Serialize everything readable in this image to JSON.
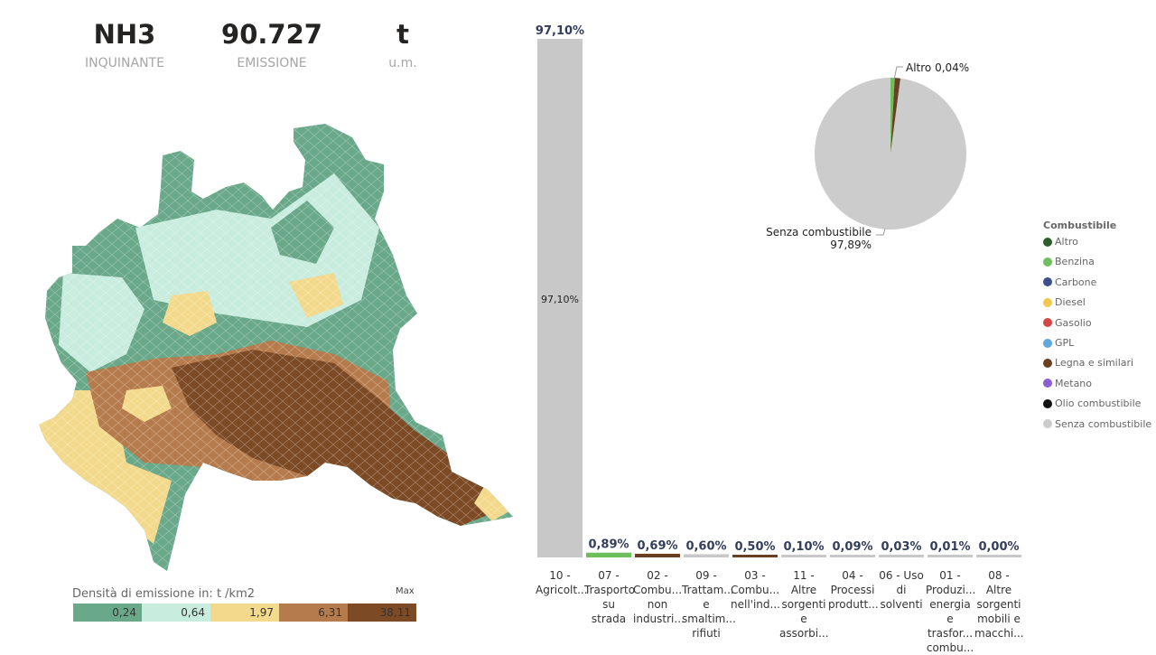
{
  "kpis": [
    {
      "value": "NH3",
      "label": "INQUINANTE"
    },
    {
      "value": "90.727",
      "label": "EMISSIONE"
    },
    {
      "value": "t",
      "label": "u.m."
    }
  ],
  "map_legend": {
    "title": "Densità di emissione in:  t /km2",
    "max_label": "Max",
    "classes": [
      {
        "value": "0,24",
        "color": "#6aa88a"
      },
      {
        "value": "0,64",
        "color": "#c8ecdd"
      },
      {
        "value": "1,97",
        "color": "#f3d98b"
      },
      {
        "value": "6,31",
        "color": "#b57b4c"
      },
      {
        "value": "38,11",
        "color": "#7d4a26"
      }
    ]
  },
  "chart_data": [
    {
      "type": "bar",
      "categories": [
        "10 - Agricolt...",
        "07 - Trasporto su strada",
        "02 - Combu... non industri...",
        "09 - Trattam... e smaltim... rifiuti",
        "03 - Combu... nell'ind...",
        "11 - Altre sorgenti e assorbi...",
        "04 - Processi produtt...",
        "06 - Uso di solventi",
        "01 - Produzi... energia e trasfor... combu...",
        "08 - Altre sorgenti mobili e macchi..."
      ],
      "values": [
        97.1,
        0.89,
        0.69,
        0.6,
        0.5,
        0.1,
        0.09,
        0.03,
        0.01,
        0.0
      ],
      "value_labels": [
        "97,10%",
        "0,89%",
        "0,69%",
        "0,60%",
        "0,50%",
        "0,10%",
        "0,09%",
        "0,03%",
        "0,01%",
        "0,00%"
      ],
      "inner_label": "97,10%",
      "bar_colors": [
        "#c8c8c8",
        "#6cbf5c",
        "#6b3f21",
        "#c8c8c8",
        "#6b3f21",
        "#c8c8c8",
        "#c8c8c8",
        "#c8c8c8",
        "#c8c8c8",
        "#c8c8c8"
      ]
    },
    {
      "type": "pie",
      "slices": [
        {
          "name": "Senza combustibile",
          "value": 97.89,
          "color": "#cccccc"
        },
        {
          "name": "Benzina",
          "value": 0.9,
          "color": "#6cbf5c"
        },
        {
          "name": "Legna e similari",
          "value": 1.17,
          "color": "#6b3f21"
        },
        {
          "name": "Altro",
          "value": 0.04,
          "color": "#2e5e2e"
        }
      ],
      "label_altro": "Altro 0,04%",
      "label_senza": "Senza combustibile",
      "label_senza_pct": "97,89%",
      "legend_title": "Combustibile",
      "legend": [
        {
          "name": "Altro",
          "color": "#2e5e2e"
        },
        {
          "name": "Benzina",
          "color": "#6cbf5c"
        },
        {
          "name": "Carbone",
          "color": "#3a4f8c"
        },
        {
          "name": "Diesel",
          "color": "#f1c84b"
        },
        {
          "name": "Gasolio",
          "color": "#d64545"
        },
        {
          "name": "GPL",
          "color": "#5fa8dc"
        },
        {
          "name": "Legna e similari",
          "color": "#6b3f21"
        },
        {
          "name": "Metano",
          "color": "#8c5fd0"
        },
        {
          "name": "Olio combustibile",
          "color": "#111111"
        },
        {
          "name": "Senza combustibile",
          "color": "#cccccc"
        }
      ]
    }
  ]
}
